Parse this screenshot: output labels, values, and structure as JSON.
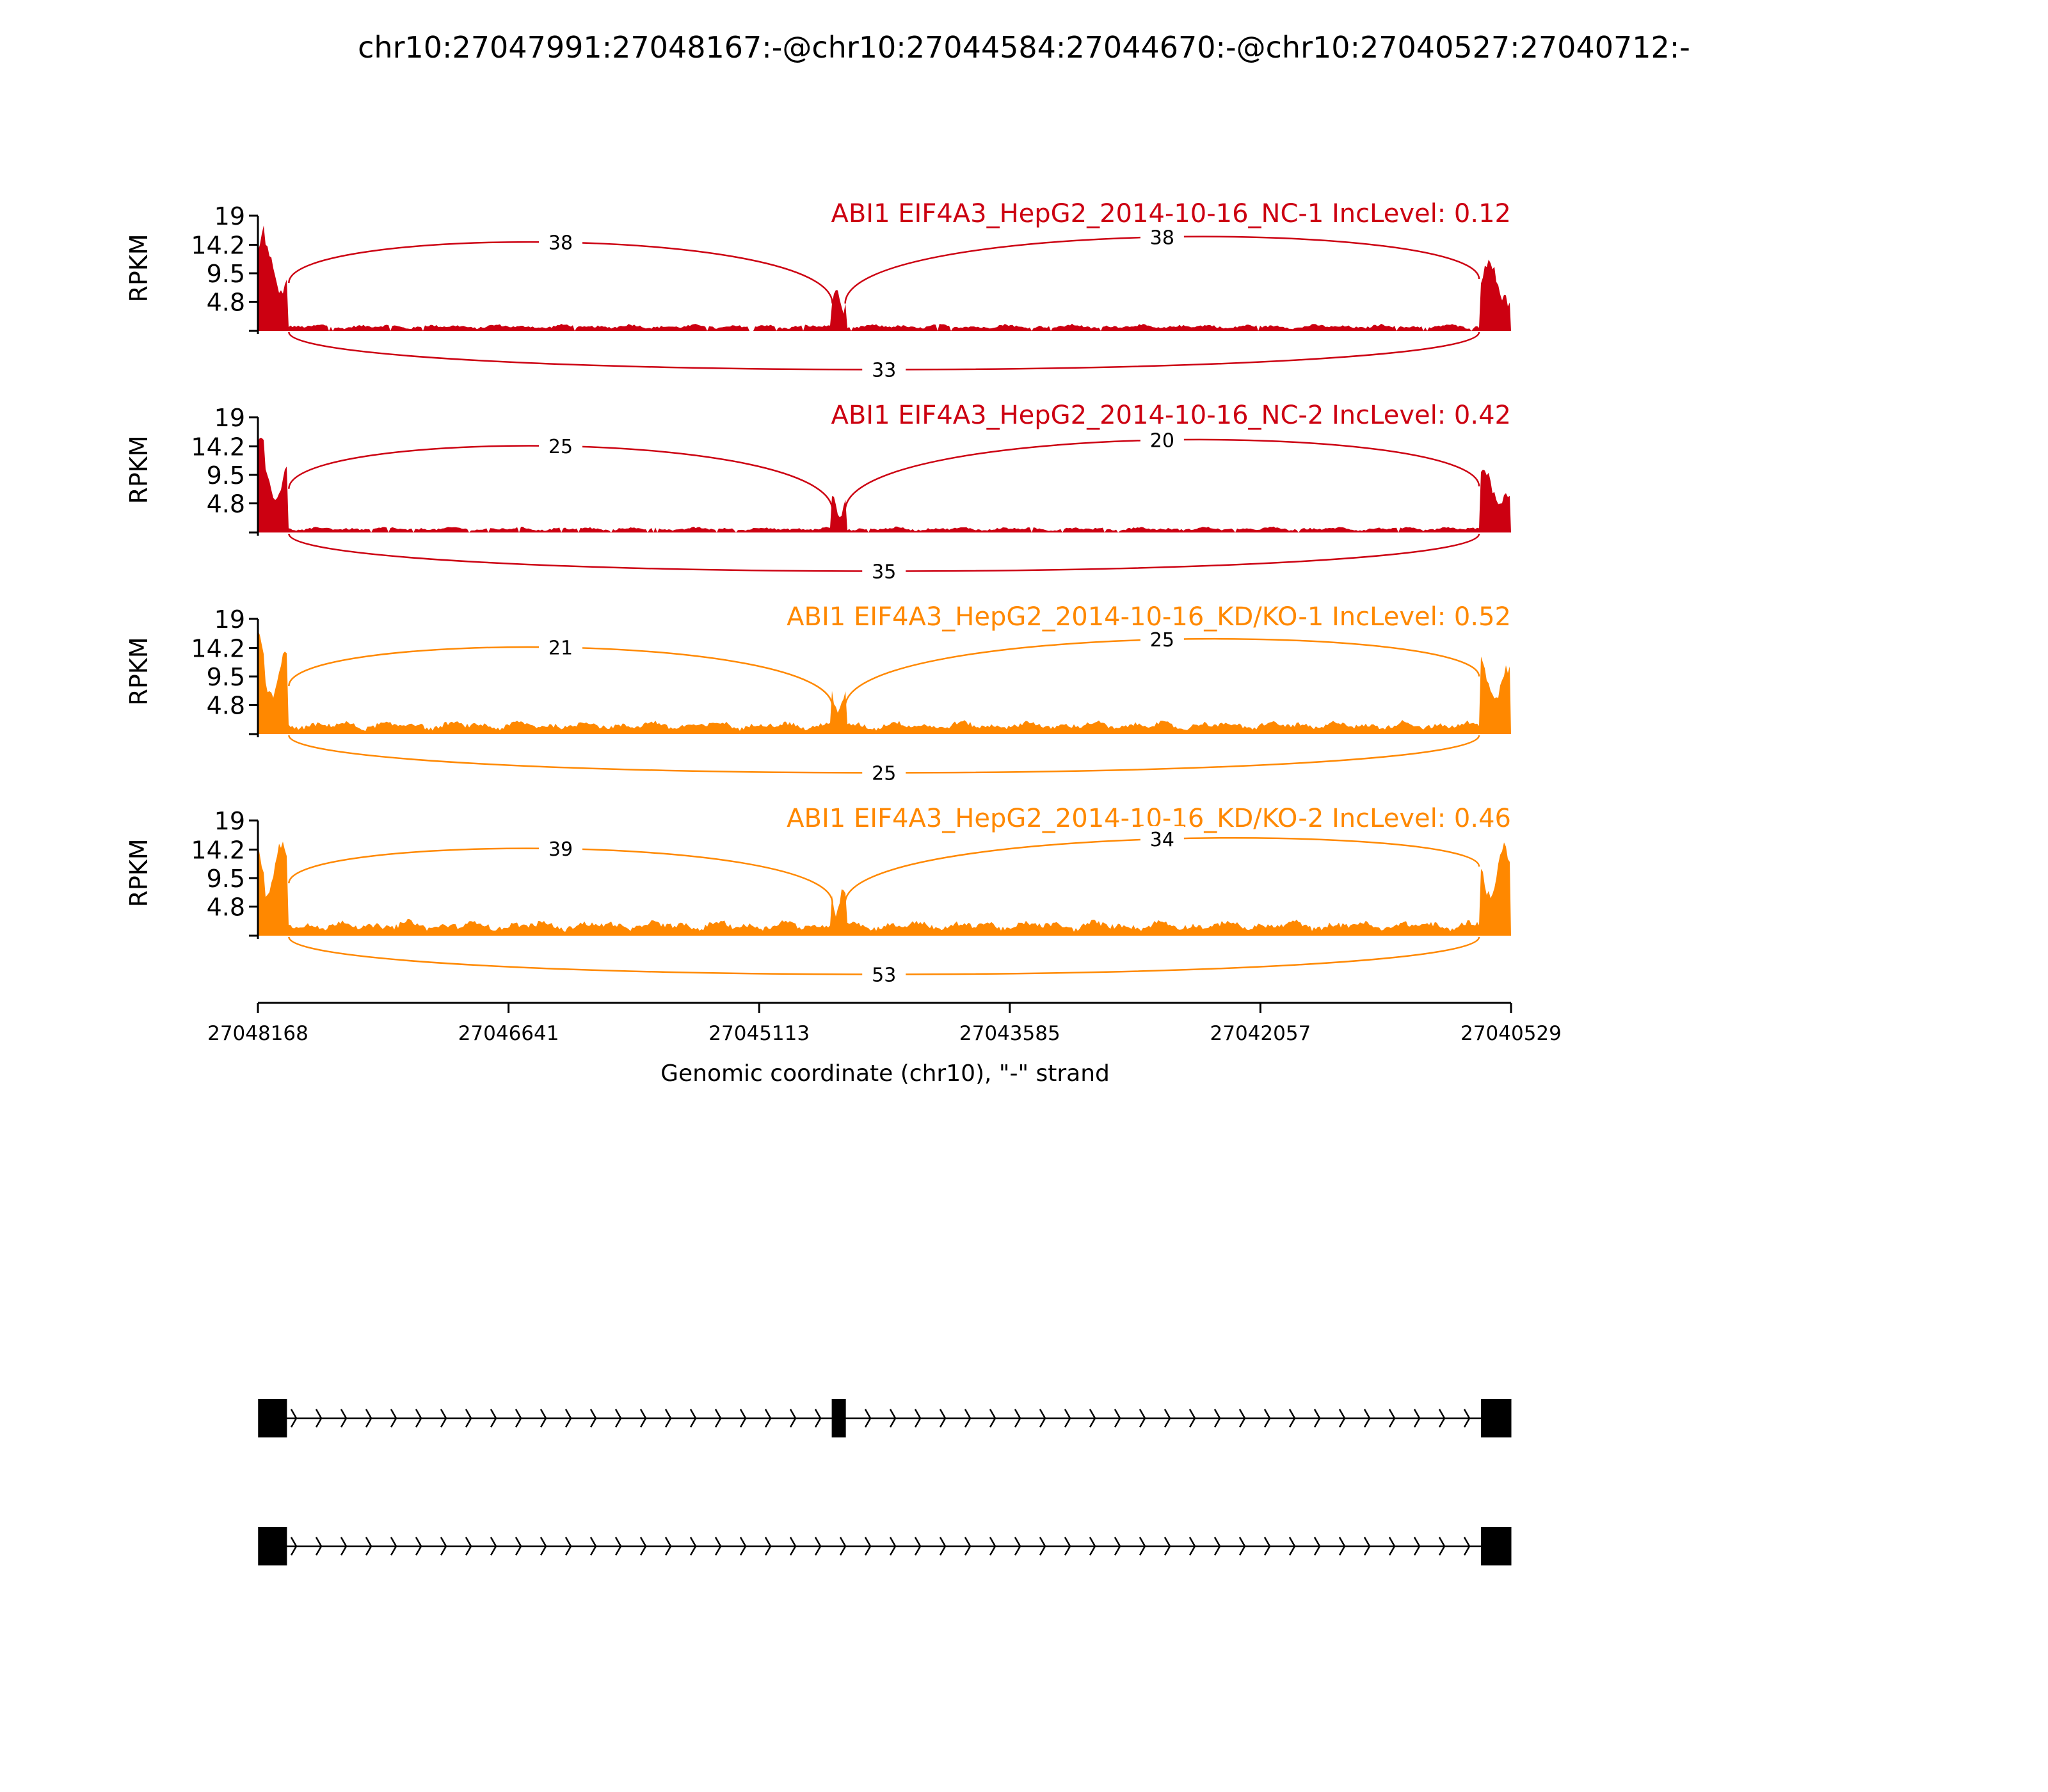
{
  "chart_data": {
    "type": "area",
    "title": "chr10:27047991:27048167:-@chr10:27044584:27044670:-@chr10:27040527:27040712:-",
    "xlabel": "Genomic coordinate (chr10), \"-\" strand",
    "ylabel": "RPKM",
    "x_range": [
      27048168,
      27040529
    ],
    "x_ticks": [
      "27048168",
      "27046641",
      "27045113",
      "27043585",
      "27042057",
      "27040529"
    ],
    "y_range": [
      0,
      19
    ],
    "y_ticks": [
      "19",
      "14.2",
      "9.5",
      "4.8"
    ],
    "exons": [
      {
        "start": 27048167,
        "end": 27047991
      },
      {
        "start": 27044670,
        "end": 27044584
      },
      {
        "start": 27040712,
        "end": 27040527
      }
    ],
    "tracks": [
      {
        "label": "ABI1 EIF4A3_HepG2_2014-10-16_NC-1 IncLevel: 0.12",
        "color": "#CC0011",
        "junctions": {
          "upstream_to_skipped": 38,
          "skipped_to_downstream": 38,
          "upstream_to_downstream": 33
        },
        "exon_levels": [
          11,
          5,
          9
        ],
        "intron_level": 0.6
      },
      {
        "label": "ABI1 EIF4A3_HepG2_2014-10-16_NC-2 IncLevel: 0.42",
        "color": "#CC0011",
        "junctions": {
          "upstream_to_skipped": 25,
          "skipped_to_downstream": 20,
          "upstream_to_downstream": 35
        },
        "exon_levels": [
          10,
          4,
          8
        ],
        "intron_level": 0.5
      },
      {
        "label": "ABI1 EIF4A3_HepG2_2014-10-16_KD/KO-1 IncLevel: 0.52",
        "color": "#FF8800",
        "junctions": {
          "upstream_to_skipped": 21,
          "skipped_to_downstream": 25,
          "upstream_to_downstream": 25
        },
        "exon_levels": [
          11,
          5,
          10
        ],
        "intron_level": 1.2
      },
      {
        "label": "ABI1 EIF4A3_HepG2_2014-10-16_KD/KO-2 IncLevel: 0.46",
        "color": "#FF8800",
        "junctions": {
          "upstream_to_skipped": 39,
          "skipped_to_downstream": 34,
          "upstream_to_downstream": 53
        },
        "exon_levels": [
          12,
          6,
          12
        ],
        "intron_level": 1.4
      }
    ],
    "isoforms": [
      {
        "exons": [
          0,
          1,
          2
        ]
      },
      {
        "exons": [
          0,
          2
        ]
      }
    ]
  }
}
